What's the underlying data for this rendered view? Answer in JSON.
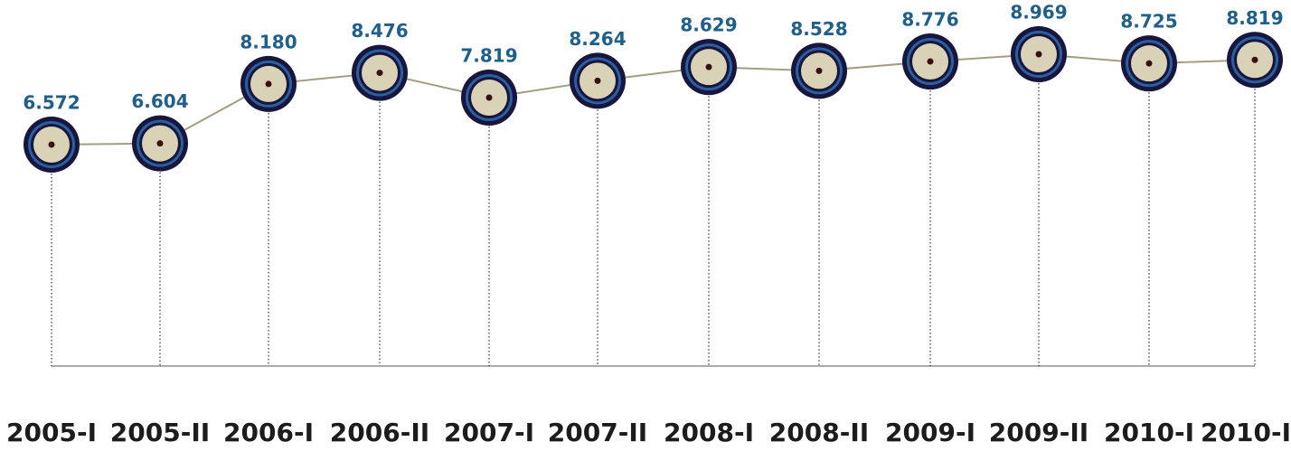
{
  "chart_data": {
    "type": "line",
    "categories": [
      "2005-I",
      "2005-II",
      "2006-I",
      "2006-II",
      "2007-I",
      "2007-II",
      "2008-I",
      "2008-II",
      "2009-I",
      "2009-II",
      "2010-I",
      "2010-I"
    ],
    "values": [
      6.572,
      6.604,
      8.18,
      8.476,
      7.819,
      8.264,
      8.629,
      8.528,
      8.776,
      8.969,
      8.725,
      8.819
    ],
    "value_labels": [
      "6.572",
      "6.604",
      "8.180",
      "8.476",
      "7.819",
      "8.264",
      "8.629",
      "8.528",
      "8.776",
      "8.969",
      "8.725",
      "8.819"
    ],
    "color": "#a39e82"
  }
}
